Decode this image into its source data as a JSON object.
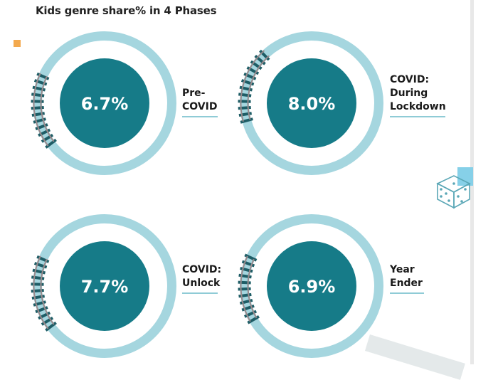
{
  "chart_data": {
    "type": "donut",
    "title": "Kids genre share% in 4 Phases",
    "categories": [
      "Pre-\nCOVID",
      "COVID:\nDuring\nLockdown",
      "COVID:\nUnlock",
      "Year\nEnder"
    ],
    "values": [
      6.7,
      8.0,
      7.7,
      6.9
    ],
    "value_labels": [
      "6.7%",
      "8.0%",
      "7.7%",
      "6.9%"
    ],
    "unit": "%"
  },
  "colors": {
    "ring": "#a5d6df",
    "center": "#167b88",
    "center_text": "#ffffff",
    "track_tie": "#1e5d66",
    "track_rail": "#9a8a8c",
    "underline": "#8fcbd6",
    "legend": "#f3a94e"
  },
  "icons": {
    "dice": "dice-icon",
    "legend": "legend-square"
  }
}
